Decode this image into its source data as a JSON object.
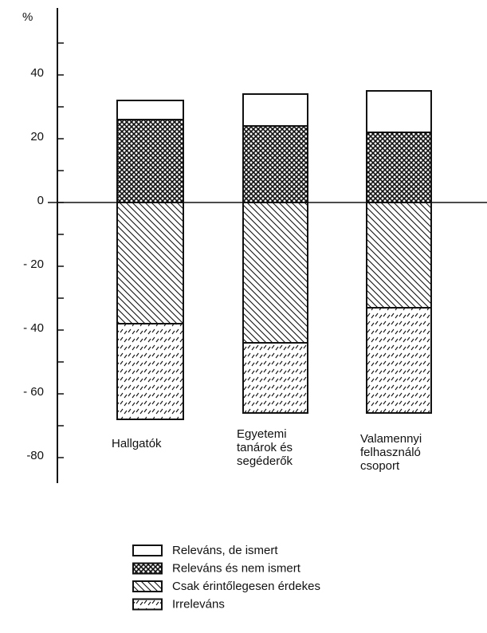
{
  "chart_data": {
    "type": "bar",
    "stacked": true,
    "y_label": "%",
    "categories": [
      "Hallgatók",
      "Egyetemi\ntanárok és\nsegéderők",
      "Valamennyi\nfelhasználó\ncsoport"
    ],
    "series": [
      {
        "name": "Releváns, de ismert",
        "color": "#ffffff",
        "pattern": "none",
        "values": [
          6,
          10,
          13
        ]
      },
      {
        "name": "Releváns és nem ismert",
        "color": "#ffffff",
        "pattern": "crosshatch",
        "values": [
          26,
          24,
          22
        ]
      },
      {
        "name": "Csak érintőlegesen érdekes",
        "color": "#ffffff",
        "pattern": "diagonal",
        "values": [
          -38,
          -44,
          -33
        ]
      },
      {
        "name": "Irreleváns",
        "color": "#ffffff",
        "pattern": "dashed",
        "values": [
          -30,
          -22,
          -33
        ]
      }
    ],
    "ylim": [
      -88,
      61
    ],
    "yticks": [
      40,
      20,
      0,
      {
        "value": -20,
        "label": "- 20"
      },
      {
        "value": -40,
        "label": "- 40"
      },
      {
        "value": -60,
        "label": "- 60"
      },
      {
        "value": -80,
        "label": "-80"
      }
    ],
    "yminor_ticks": [
      50,
      30,
      10,
      -10,
      -30,
      -50,
      -70
    ],
    "legend": "bottom"
  }
}
